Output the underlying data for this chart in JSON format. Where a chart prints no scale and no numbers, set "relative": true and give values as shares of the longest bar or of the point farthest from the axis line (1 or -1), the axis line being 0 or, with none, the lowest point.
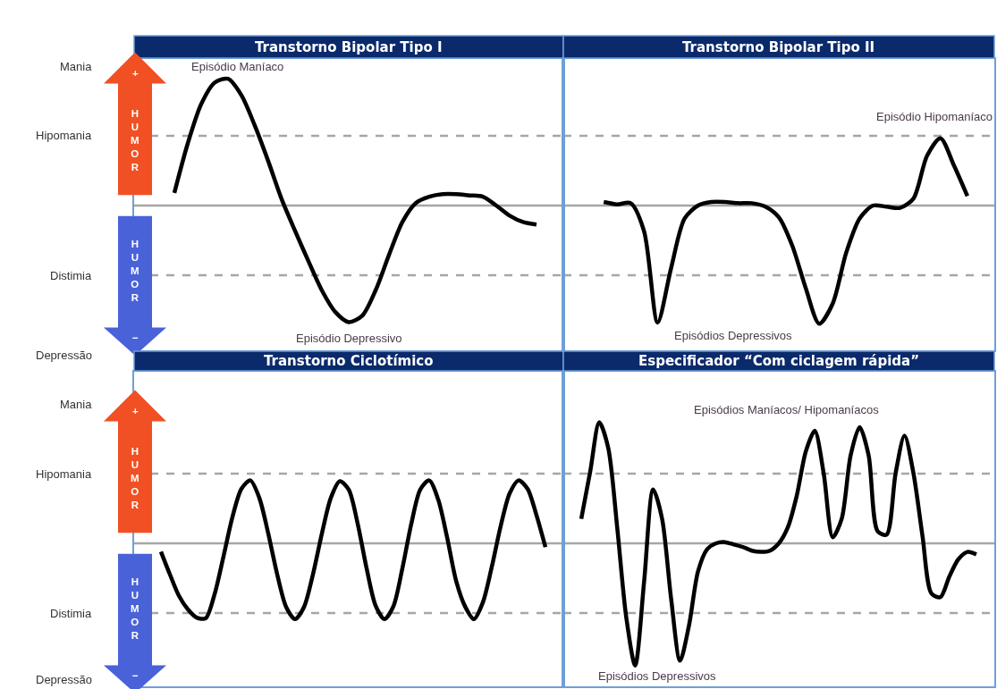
{
  "chart_data": [
    {
      "type": "line",
      "title": "Transtorno Bipolar Tipo I",
      "relative": true,
      "categories": [
        null,
        null,
        null,
        null,
        null,
        null,
        null,
        null,
        null,
        null,
        null,
        null,
        null,
        null,
        null,
        null,
        null,
        null,
        null,
        null,
        null,
        null,
        null,
        null,
        null,
        null,
        null,
        null,
        null,
        null,
        null,
        null,
        null
      ],
      "series": [
        {
          "color": "#000000",
          "values": [
            null,
            null,
            null,
            0.1,
            0.49,
            0.8,
            0.97,
            1,
            0.87,
            0.63,
            0.35,
            0.05,
            -0.2,
            -0.44,
            -0.67,
            -0.84,
            -0.92,
            -0.87,
            -0.67,
            -0.39,
            -0.13,
            0.02,
            0.07,
            0.09,
            0.09,
            0.08,
            0.07,
            0,
            -0.08,
            -0.13,
            -0.15,
            null,
            null
          ]
        }
      ],
      "ref_lines": [
        {
          "axis": "y",
          "value": 0.55,
          "color": "#a6a6a6",
          "line_style": "dashed"
        },
        {
          "axis": "y",
          "value": 0,
          "color": "#a6a6a6"
        },
        {
          "axis": "y",
          "value": -0.55,
          "color": "#a6a6a6",
          "line_style": "dashed"
        }
      ],
      "annotations": [
        "Mania",
        "Hipomania",
        "Distimia",
        "Depressão",
        "+",
        "HUMOR",
        "HUMOR",
        "−",
        "Episódio Maníaco",
        "Episódio Depressivo"
      ]
    },
    {
      "type": "line",
      "title": "Transtorno Bipolar Tipo II",
      "relative": true,
      "categories": [
        null,
        null,
        null,
        null,
        null,
        null,
        null,
        null,
        null,
        null,
        null,
        null,
        null,
        null,
        null,
        null,
        null,
        null,
        null,
        null,
        null,
        null,
        null,
        null,
        null,
        null,
        null,
        null,
        null,
        null,
        null,
        null,
        null
      ],
      "series": [
        {
          "color": "#000000",
          "values": [
            null,
            null,
            null,
            0.03,
            0.01,
            0.02,
            -0.22,
            -0.99,
            -0.53,
            -0.11,
            0,
            0.03,
            0.03,
            0.02,
            0.02,
            -0.01,
            -0.1,
            -0.34,
            -0.7,
            -1,
            -0.83,
            -0.4,
            -0.11,
            0,
            -0.01,
            -0.02,
            0.06,
            0.42,
            0.57,
            0.34,
            0.08,
            null,
            null
          ]
        }
      ],
      "ref_lines": [
        {
          "axis": "y",
          "value": 0.59,
          "color": "#a6a6a6",
          "line_style": "dashed"
        },
        {
          "axis": "y",
          "value": 0,
          "color": "#a6a6a6"
        },
        {
          "axis": "y",
          "value": -0.59,
          "color": "#a6a6a6",
          "line_style": "dashed"
        }
      ],
      "annotations": [
        "Episódio Hipomaníaco",
        "Episódios Depressivos"
      ]
    },
    {
      "type": "line",
      "title": "Transtorno Ciclotímico",
      "relative": true,
      "categories": [
        null,
        null,
        null,
        null,
        null,
        null,
        null,
        null,
        null,
        null,
        null,
        null,
        null,
        null,
        null,
        null,
        null,
        null,
        null,
        null,
        null,
        null,
        null,
        null,
        null,
        null,
        null,
        null,
        null,
        null,
        null,
        null,
        null,
        null,
        null,
        null,
        null,
        null,
        null,
        null,
        null,
        null,
        null,
        null,
        null,
        null,
        null,
        null,
        null
      ],
      "series": [
        {
          "color": "#000000",
          "values": [
            null,
            null,
            null,
            -0.11,
            -0.41,
            -0.69,
            -0.87,
            -0.98,
            -0.99,
            -0.67,
            -0.17,
            0.35,
            0.72,
            0.83,
            0.6,
            0.13,
            -0.41,
            -0.84,
            -1,
            -0.84,
            -0.41,
            0.13,
            0.6,
            0.82,
            0.71,
            0.26,
            -0.33,
            -0.82,
            -1,
            -0.83,
            -0.33,
            0.26,
            0.71,
            0.83,
            0.58,
            0.08,
            -0.49,
            -0.83,
            -1,
            -0.78,
            -0.31,
            0.23,
            0.66,
            0.83,
            0.72,
            0.37,
            -0.05,
            null,
            null
          ]
        }
      ],
      "ref_lines": [
        {
          "axis": "y",
          "value": 0.92,
          "color": "#a6a6a6",
          "line_style": "dashed"
        },
        {
          "axis": "y",
          "value": 0,
          "color": "#a6a6a6"
        },
        {
          "axis": "y",
          "value": -0.92,
          "color": "#a6a6a6",
          "line_style": "dashed"
        }
      ],
      "annotations": [
        "Mania",
        "Hipomania",
        "Distimia",
        "Depressão",
        "+",
        "HUMOR",
        "HUMOR",
        "−"
      ]
    },
    {
      "type": "line",
      "title": "Especificador “Com ciclagem rápida”",
      "relative": true,
      "categories": [
        null,
        null,
        null,
        null,
        null,
        null,
        null,
        null,
        null,
        null,
        null,
        null,
        null,
        null,
        null,
        null,
        null,
        null,
        null,
        null,
        null,
        null,
        null,
        null,
        null,
        null,
        null,
        null,
        null,
        null,
        null,
        null,
        null,
        null,
        null,
        null,
        null,
        null,
        null,
        null,
        null,
        null,
        null,
        null,
        null,
        null,
        null,
        null,
        null
      ],
      "series": [
        {
          "color": "#000000",
          "values": [
            null,
            null,
            0.2,
            0.59,
            0.99,
            0.78,
            0.13,
            -0.6,
            -1,
            -0.31,
            0.44,
            0.2,
            -0.45,
            -0.96,
            -0.67,
            -0.23,
            -0.05,
            0,
            0.01,
            -0.01,
            -0.03,
            -0.06,
            -0.07,
            -0.06,
            0,
            0.13,
            0.39,
            0.75,
            0.92,
            0.57,
            0.05,
            0.2,
            0.72,
            0.95,
            0.72,
            0.1,
            0.07,
            0.57,
            0.88,
            0.57,
            0.06,
            -0.41,
            -0.44,
            -0.27,
            -0.13,
            -0.07,
            -0.09,
            null,
            null
          ]
        }
      ],
      "ref_lines": [
        {
          "axis": "y",
          "value": 0.57,
          "color": "#a6a6a6",
          "line_style": "dashed"
        },
        {
          "axis": "y",
          "value": 0,
          "color": "#a6a6a6"
        },
        {
          "axis": "y",
          "value": -0.57,
          "color": "#a6a6a6",
          "line_style": "dashed"
        }
      ],
      "annotations": [
        "Episódios Maníacos/ Hipomaníacos",
        "Episódios Depressivos"
      ]
    }
  ]
}
